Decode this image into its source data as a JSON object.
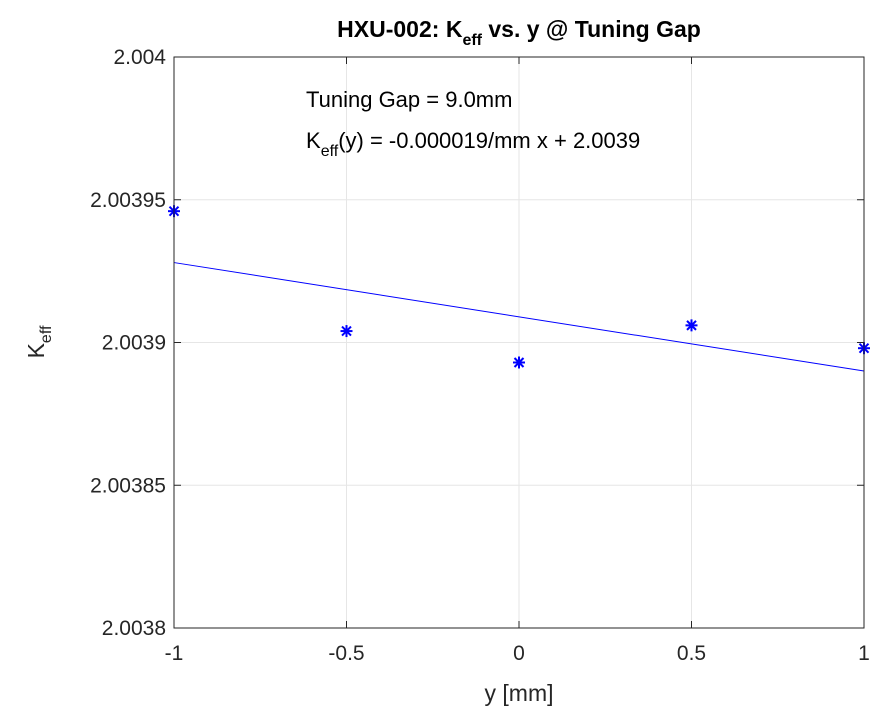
{
  "chart_data": {
    "type": "scatter",
    "title": {
      "main": "HXU-002: K",
      "sub": "eff",
      "rest": " vs. y @ Tuning Gap"
    },
    "xlabel": "y [mm]",
    "ylabel": {
      "main": "K",
      "sub": "eff"
    },
    "xlim": [
      -1,
      1
    ],
    "ylim": [
      2.0038,
      2.004
    ],
    "xticks": [
      -1,
      -0.5,
      0,
      0.5,
      1
    ],
    "xtick_labels": [
      "-1",
      "-0.5",
      "0",
      "0.5",
      "1"
    ],
    "yticks": [
      2.0038,
      2.00385,
      2.0039,
      2.00395,
      2.004
    ],
    "ytick_labels": [
      "2.0038",
      "2.00385",
      "2.0039",
      "2.00395",
      "2.004"
    ],
    "grid": true,
    "colors": {
      "series": "#0000ff",
      "axis": "#262626",
      "grid": "#e6e6e6"
    },
    "series": [
      {
        "marker": "asterisk",
        "x": [
          -1,
          -0.5,
          0,
          0.5,
          1
        ],
        "y": [
          2.003946,
          2.003904,
          2.003893,
          2.003906,
          2.003898
        ]
      }
    ],
    "fit_line": {
      "x": [
        -1,
        1
      ],
      "y": [
        2.003928,
        2.00389
      ]
    },
    "annotations": {
      "line1": "Tuning Gap = 9.0mm",
      "line2": {
        "main": "K",
        "sub": "eff",
        "rest": "(y) = -0.000019/mm x + 2.0039"
      }
    }
  }
}
